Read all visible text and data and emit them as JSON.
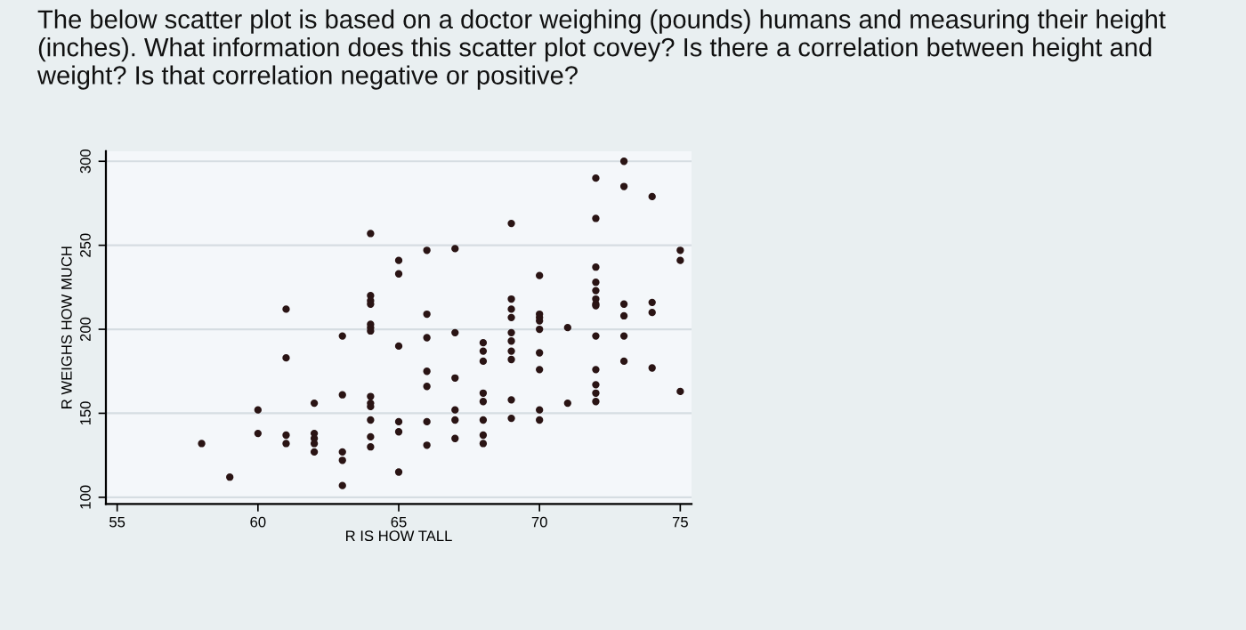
{
  "chart_data": {
    "type": "scatter",
    "title": "The below scatter plot is based on a doctor weighing (pounds) humans and measuring their height (inches). What information does this scatter plot covey? Is there a correlation between height and weight? Is that correlation negative or positive?",
    "xlabel": "R IS HOW TALL",
    "ylabel": "R WEIGHS HOW MUCH",
    "series": [
      {
        "color": "#2a1414",
        "x": [
          58,
          59,
          60,
          60,
          61,
          61,
          61,
          61,
          62,
          62,
          62,
          62,
          62,
          63,
          63,
          63,
          63,
          63,
          64,
          64,
          64,
          64,
          64,
          64,
          64,
          64,
          64,
          64,
          64,
          64,
          64,
          65,
          65,
          65,
          65,
          65,
          65,
          66,
          66,
          66,
          66,
          66,
          66,
          66,
          67,
          67,
          67,
          67,
          67,
          67,
          68,
          68,
          68,
          68,
          68,
          68,
          68,
          68,
          69,
          69,
          69,
          69,
          69,
          69,
          69,
          69,
          69,
          69,
          70,
          70,
          70,
          70,
          70,
          70,
          70,
          70,
          70,
          71,
          71,
          72,
          72,
          72,
          72,
          72,
          72,
          72,
          72,
          72,
          72,
          72,
          72,
          72,
          73,
          73,
          73,
          73,
          73,
          73,
          74,
          74,
          74,
          74,
          75,
          75,
          75
        ],
        "values": [
          132,
          112,
          152,
          138,
          212,
          183,
          137,
          132,
          156,
          138,
          135,
          132,
          127,
          196,
          161,
          127,
          122,
          107,
          257,
          220,
          217,
          215,
          203,
          201,
          199,
          160,
          156,
          154,
          146,
          136,
          130,
          241,
          233,
          190,
          145,
          139,
          115,
          247,
          209,
          195,
          175,
          166,
          145,
          131,
          248,
          198,
          171,
          152,
          146,
          135,
          192,
          187,
          181,
          162,
          157,
          146,
          137,
          132,
          263,
          218,
          212,
          207,
          198,
          193,
          187,
          182,
          158,
          147,
          232,
          209,
          207,
          205,
          200,
          186,
          176,
          152,
          146,
          201,
          156,
          290,
          266,
          237,
          228,
          223,
          218,
          215,
          214,
          196,
          176,
          167,
          162,
          157,
          300,
          285,
          215,
          208,
          196,
          181,
          279,
          216,
          210,
          177,
          247,
          241,
          163
        ]
      }
    ],
    "xlim": [
      54.6,
      75.4
    ],
    "ylim": [
      96,
      306
    ],
    "xticks": [
      55,
      60,
      65,
      70,
      75
    ],
    "yticks": [
      100,
      150,
      200,
      250,
      300
    ],
    "grid": "y",
    "marker": "circle"
  }
}
